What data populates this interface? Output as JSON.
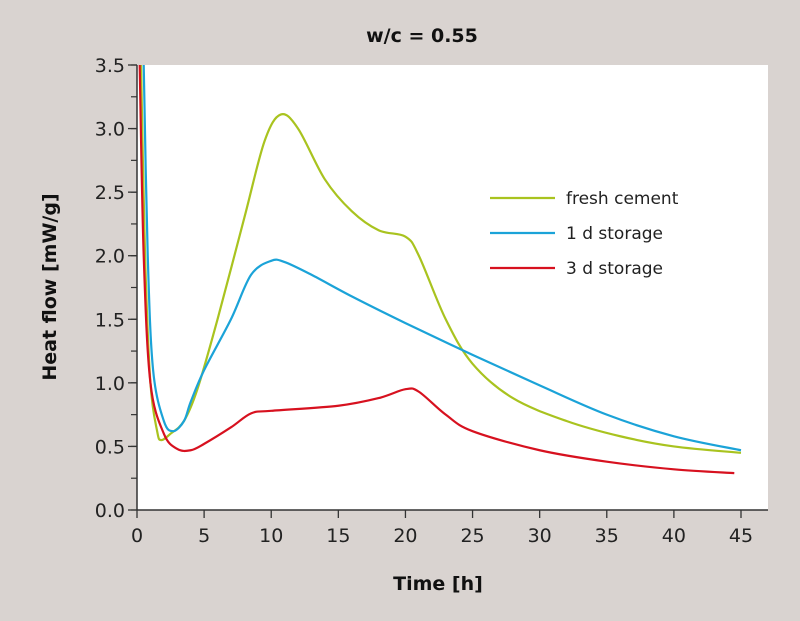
{
  "chart_data": {
    "type": "line",
    "title": "w/c = 0.55",
    "xlabel": "Time [h]",
    "ylabel": "Heat flow [mW/g]",
    "xlim": [
      0,
      45
    ],
    "ylim": [
      0,
      3.5
    ],
    "xticks": [
      "0",
      "5",
      "10",
      "15",
      "20",
      "25",
      "30",
      "35",
      "40",
      "45"
    ],
    "yticks": [
      "0.0",
      "0.5",
      "1.0",
      "1.5",
      "2.0",
      "2.5",
      "3.0",
      "3.5"
    ],
    "grid": false,
    "legend_position": "right",
    "series": [
      {
        "name": "fresh cement",
        "color": "#a9c31f",
        "x": [
          0.3,
          0.6,
          1,
          1.5,
          1.8,
          2.5,
          3.5,
          4.5,
          6,
          8,
          9.5,
          10.7,
          12,
          14,
          16,
          18,
          20,
          21,
          23,
          25,
          28,
          32,
          36,
          40,
          45
        ],
        "y": [
          3.5,
          2.0,
          1.0,
          0.62,
          0.55,
          0.6,
          0.7,
          0.95,
          1.5,
          2.3,
          2.9,
          3.11,
          3.0,
          2.6,
          2.35,
          2.2,
          2.15,
          2.0,
          1.5,
          1.15,
          0.88,
          0.7,
          0.58,
          0.5,
          0.45
        ]
      },
      {
        "name": "1 d storage",
        "color": "#1ba3d8",
        "x": [
          0.5,
          0.8,
          1.2,
          2,
          2.7,
          3.5,
          4,
          5,
          7,
          8.5,
          10,
          11,
          13,
          16,
          20,
          25,
          30,
          35,
          40,
          45
        ],
        "y": [
          3.5,
          2.0,
          1.1,
          0.7,
          0.62,
          0.7,
          0.85,
          1.1,
          1.5,
          1.85,
          1.96,
          1.95,
          1.85,
          1.68,
          1.47,
          1.22,
          0.98,
          0.75,
          0.58,
          0.47
        ]
      },
      {
        "name": "3 d storage",
        "color": "#d7111f",
        "x": [
          0.2,
          0.5,
          1,
          2,
          3,
          4,
          5,
          7,
          8.5,
          10,
          15,
          18,
          20,
          21,
          23,
          25,
          30,
          35,
          40,
          44.5
        ],
        "y": [
          3.5,
          2.0,
          1.0,
          0.6,
          0.48,
          0.47,
          0.52,
          0.65,
          0.76,
          0.78,
          0.82,
          0.88,
          0.95,
          0.93,
          0.75,
          0.62,
          0.47,
          0.38,
          0.32,
          0.29
        ]
      }
    ]
  }
}
